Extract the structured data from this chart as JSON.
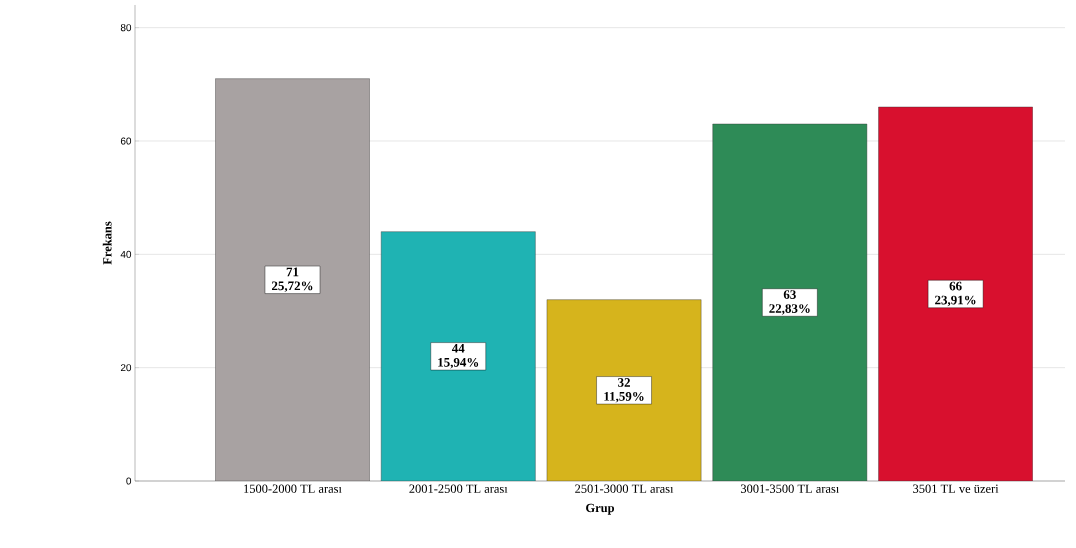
{
  "chart_data": {
    "type": "bar",
    "xlabel": "Grup",
    "ylabel": "Frekans",
    "categories": [
      "1500-2000 TL arası",
      "2001-2500 TL arası",
      "2501-3000 TL arası",
      "3001-3500 TL arası",
      "3501 TL ve üzeri"
    ],
    "values": [
      71,
      44,
      32,
      63,
      66
    ],
    "colors": [
      "#a8a2a2",
      "#1fb3b3",
      "#d6b41c",
      "#2e8b57",
      "#d8102e"
    ],
    "value_labels": [
      "71 25,72%",
      "44 15,94%",
      "32 11,59%",
      "63 22,83%",
      "66 23,91%"
    ],
    "ylim": [
      0,
      84
    ],
    "yticks": [
      0,
      20,
      40,
      60,
      80
    ],
    "grid": "y"
  }
}
